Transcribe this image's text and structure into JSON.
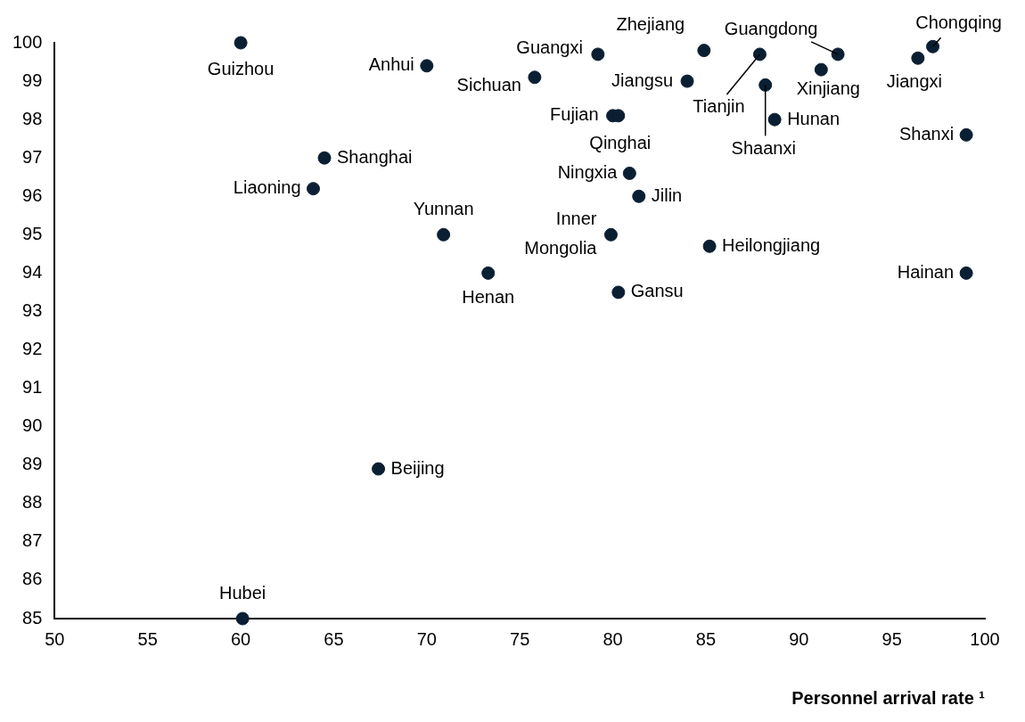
{
  "chart_data": {
    "type": "scatter",
    "xlabel": "Personnel arrival rate ¹",
    "x": [
      60,
      70,
      75.8,
      79.2,
      84.9,
      84.0,
      80.0,
      80.3,
      87.9,
      88.2,
      88.7,
      92.1,
      91.2,
      96.4,
      97.2,
      99.0,
      64.5,
      63.9,
      80.9,
      81.4,
      79.9,
      70.9,
      73.3,
      85.2,
      99.0,
      80.3,
      67.4,
      60.1
    ],
    "values": [
      100,
      99.4,
      99.1,
      99.7,
      99.8,
      99.0,
      98.1,
      98.1,
      99.7,
      98.9,
      98.0,
      99.7,
      99.3,
      99.6,
      99.9,
      97.6,
      97.0,
      96.2,
      96.6,
      96.0,
      95.0,
      95.0,
      94.0,
      94.7,
      94.0,
      93.5,
      88.9,
      85
    ],
    "value_labels": [
      "Guizhou",
      "Anhui",
      "Sichuan",
      "Guangxi",
      "Zhejiang",
      "Jiangsu",
      "Fujian",
      "Qinghai",
      "Tianjin",
      "Shaanxi",
      "Hunan",
      "Guangdong",
      "Xinjiang",
      "Jiangxi",
      "Chongqing",
      "Shanxi",
      "Shanghai",
      "Liaoning",
      "Ningxia",
      "Jilin",
      "Inner Mongolia",
      "Yunnan",
      "Henan",
      "Heilongjiang",
      "Hainan",
      "Gansu",
      "Beijing",
      "Hubei"
    ],
    "color": "#0b1f33",
    "marker": "circle",
    "xlim": [
      50,
      100
    ],
    "xticks": [
      50,
      55,
      60,
      65,
      70,
      75,
      80,
      85,
      90,
      95,
      100
    ],
    "ylim": [
      85,
      100
    ],
    "yticks": [
      85,
      86,
      87,
      88,
      89,
      90,
      91,
      92,
      93,
      94,
      95,
      96,
      97,
      98,
      99,
      100
    ],
    "grid": false,
    "legend": false
  }
}
